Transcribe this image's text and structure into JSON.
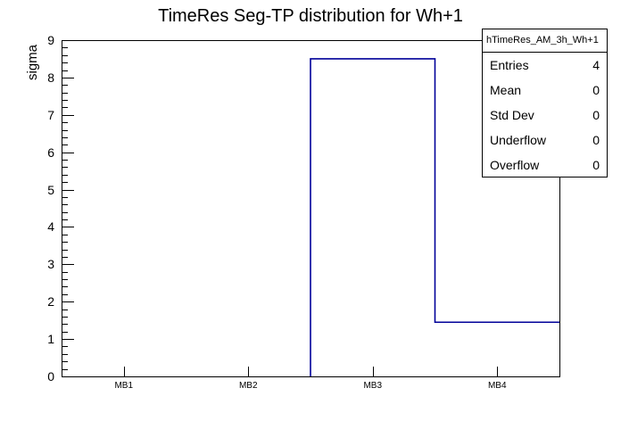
{
  "title": "TimeRes Seg-TP distribution for Wh+1",
  "colors": {
    "histogram_line": "#000099",
    "frame_line": "#000000",
    "background": "#ffffff",
    "text": "#000000"
  },
  "stats_box": {
    "header": "hTimeRes_AM_3h_Wh+1",
    "rows": [
      {
        "label": "Entries",
        "value": "4"
      },
      {
        "label": "Mean",
        "value": "0"
      },
      {
        "label": "Std Dev",
        "value": "0"
      },
      {
        "label": "Underflow",
        "value": "0"
      },
      {
        "label": "Overflow",
        "value": "0"
      }
    ]
  },
  "chart_data": {
    "type": "bar",
    "subtype": "root-step-histogram",
    "title": "TimeRes Seg-TP distribution for Wh+1",
    "categories": [
      "MB1",
      "MB2",
      "MB3",
      "MB4"
    ],
    "values": [
      0,
      0,
      8.5,
      1.45
    ],
    "xlabel": "",
    "ylabel": "sigma",
    "ylim": [
      0,
      9
    ],
    "y_major_ticks": [
      0,
      1,
      2,
      3,
      4,
      5,
      6,
      7,
      8,
      9
    ],
    "y_minor_subdivisions": 5,
    "grid": false,
    "legend": "none"
  }
}
